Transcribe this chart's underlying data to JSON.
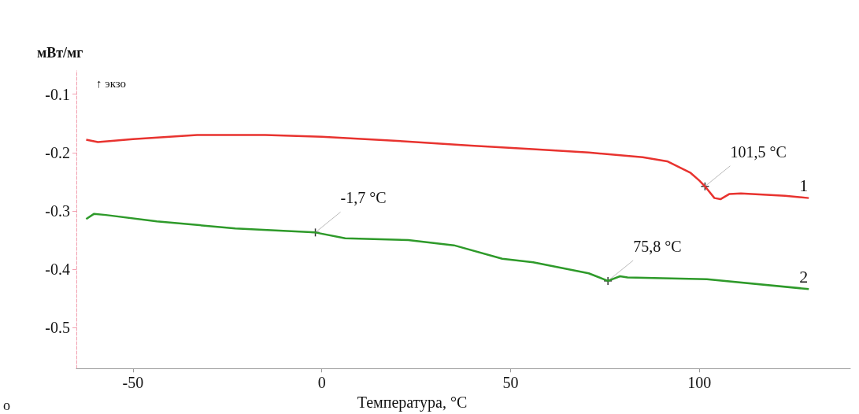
{
  "chart_data": {
    "type": "line",
    "xlabel": "Температура, °C",
    "ylabel": "мВт/мг",
    "xlim": [
      -65,
      140
    ],
    "xticks": [
      -50,
      0,
      50,
      100
    ],
    "ylim": [
      -0.57,
      -0.06
    ],
    "yticks": [
      -0.5,
      -0.4,
      -0.3,
      -0.2,
      -0.1
    ],
    "grid": false,
    "legend": false,
    "marker": "none",
    "line_style": "solid",
    "series": [
      {
        "name": "1",
        "color": "#e8332f",
        "x": [
          -62.4,
          -59.3,
          -50,
          -33,
          -15,
          0,
          20,
          39.5,
          55,
          70.7,
          85,
          91.5,
          97.7,
          100,
          101.5,
          104,
          105.6,
          108,
          111,
          122.7,
          129
        ],
        "values": [
          -0.178,
          -0.182,
          -0.177,
          -0.17,
          -0.17,
          -0.173,
          -0.18,
          -0.188,
          -0.194,
          -0.2,
          -0.208,
          -0.215,
          -0.235,
          -0.248,
          -0.258,
          -0.278,
          -0.28,
          -0.271,
          -0.27,
          -0.274,
          -0.278
        ]
      },
      {
        "name": "2",
        "color": "#2e9a2a",
        "x": [
          -62.4,
          -60.3,
          -57.2,
          -43.7,
          -22.9,
          -1.7,
          6.2,
          22.9,
          35,
          47.8,
          56,
          70.7,
          75.8,
          79,
          81,
          102,
          129
        ],
        "values": [
          -0.314,
          -0.305,
          -0.307,
          -0.318,
          -0.33,
          -0.337,
          -0.347,
          -0.35,
          -0.359,
          -0.382,
          -0.388,
          -0.407,
          -0.42,
          -0.412,
          -0.414,
          -0.417,
          -0.434
        ]
      }
    ],
    "annotations": [
      "↑ экзо",
      {
        "text": "-1,7 °C",
        "x": -1.7,
        "y": -0.337
      },
      {
        "text": "75,8 °C",
        "x": 75.8,
        "y": -0.42
      },
      {
        "text": "101,5 °C",
        "x": 101.5,
        "y": -0.258
      },
      "о"
    ]
  }
}
